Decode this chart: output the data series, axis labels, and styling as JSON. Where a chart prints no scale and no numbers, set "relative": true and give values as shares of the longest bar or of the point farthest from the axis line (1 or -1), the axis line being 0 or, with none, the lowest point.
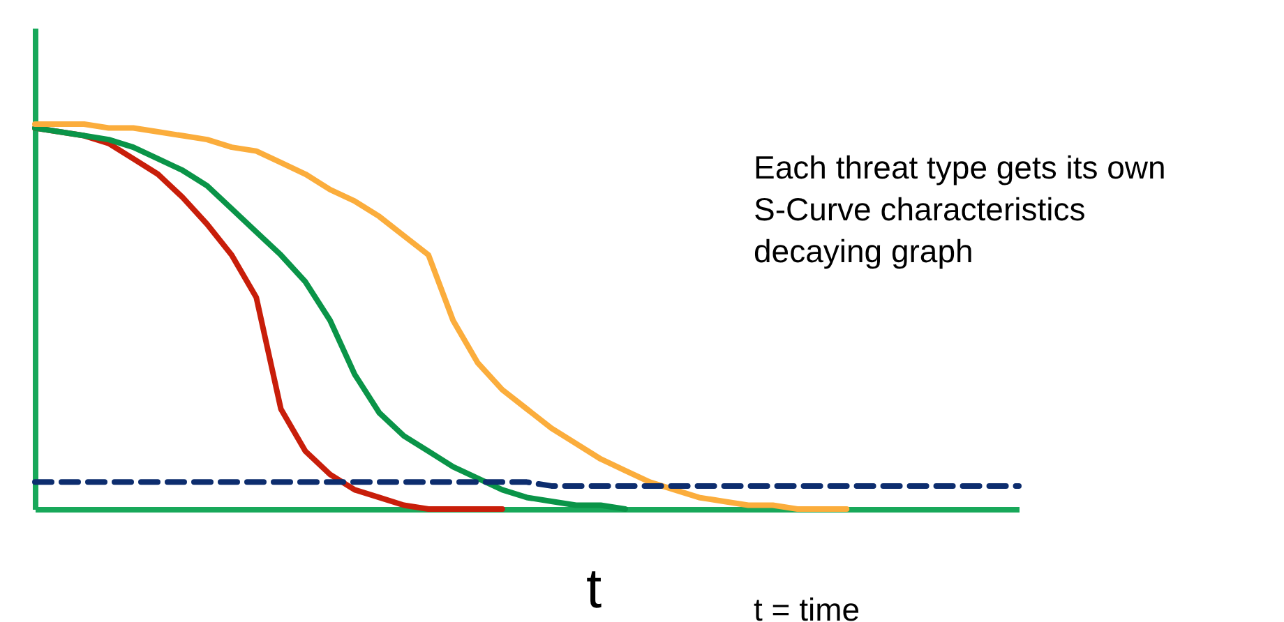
{
  "chart_data": {
    "type": "line",
    "relative": true,
    "xlabel": "t",
    "tick_labels": false,
    "annotations": [
      "Each threat type gets its own\nS-Curve characteristics\ndecaying graph",
      "t = time"
    ],
    "categories": [
      null,
      null,
      null,
      null,
      null,
      null,
      null,
      null,
      null,
      null,
      null,
      null,
      null,
      null,
      null,
      null,
      null,
      null,
      null,
      null,
      null,
      null,
      null,
      null,
      null,
      null,
      null,
      null,
      null,
      null,
      null,
      null,
      null,
      null,
      null,
      null,
      null,
      null,
      null,
      null,
      null
    ],
    "series": [
      {
        "color": "#c81e0a",
        "values": [
          0.99,
          0.98,
          0.97,
          0.95,
          0.91,
          0.87,
          0.81,
          0.74,
          0.66,
          0.55,
          0.26,
          0.15,
          0.09,
          0.05,
          0.03,
          0.01,
          0,
          0,
          0,
          0,
          null,
          null,
          null,
          null,
          null,
          null,
          null,
          null,
          null,
          null,
          null,
          null,
          null,
          null,
          null,
          null,
          null,
          null,
          null,
          null,
          null
        ]
      },
      {
        "color": "#0a9448",
        "values": [
          0.99,
          0.98,
          0.97,
          0.96,
          0.94,
          0.91,
          0.88,
          0.84,
          0.78,
          0.72,
          0.66,
          0.59,
          0.49,
          0.35,
          0.25,
          0.19,
          0.15,
          0.11,
          0.08,
          0.05,
          0.03,
          0.02,
          0.01,
          0.01,
          0,
          null,
          null,
          null,
          null,
          null,
          null,
          null,
          null,
          null,
          null,
          null,
          null,
          null,
          null,
          null,
          null
        ]
      },
      {
        "color": "#fbad3c",
        "values": [
          1,
          1,
          1,
          0.99,
          0.99,
          0.98,
          0.97,
          0.96,
          0.94,
          0.93,
          0.9,
          0.87,
          0.83,
          0.8,
          0.76,
          0.71,
          0.66,
          0.49,
          0.38,
          0.31,
          0.26,
          0.21,
          0.17,
          0.13,
          0.1,
          0.07,
          0.05,
          0.03,
          0.02,
          0.01,
          0.01,
          0,
          0,
          0,
          null,
          null,
          null,
          null,
          null,
          null,
          null
        ]
      },
      {
        "color": "#0d2d6e",
        "line_style": "dashed",
        "values": [
          0.07,
          0.07,
          0.07,
          0.07,
          0.07,
          0.07,
          0.07,
          0.07,
          0.07,
          0.07,
          0.07,
          0.07,
          0.07,
          0.07,
          0.07,
          0.07,
          0.07,
          0.07,
          0.07,
          0.07,
          0.07,
          0.06,
          0.06,
          0.06,
          0.06,
          0.06,
          0.06,
          0.06,
          0.06,
          0.06,
          0.06,
          0.06,
          0.06,
          0.06,
          0.06,
          0.06,
          0.06,
          0.06,
          0.06,
          0.06,
          0.06
        ]
      }
    ]
  }
}
